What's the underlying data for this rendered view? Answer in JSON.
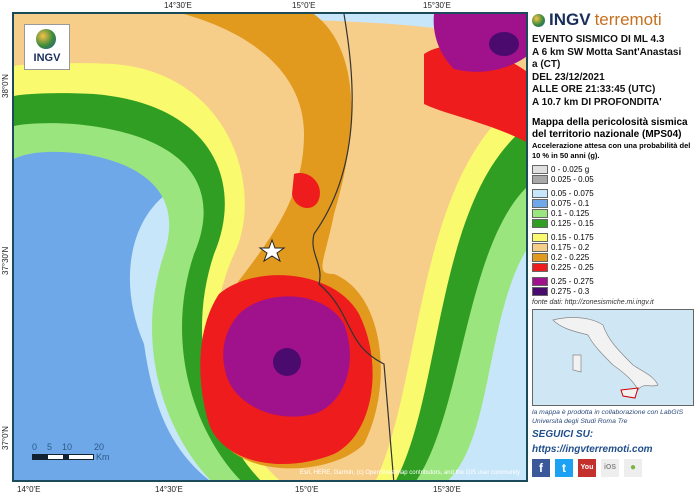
{
  "map": {
    "logo_text": "INGV",
    "ticks_top": [
      "14°30'E",
      "15°0'E",
      "15°30'E"
    ],
    "ticks_left": [
      "38°0'N",
      "37°30'N",
      "37°0'N"
    ],
    "ticks_bottom": [
      "14°0'E",
      "14°30'E",
      "15°0'E",
      "15°30'E"
    ],
    "scale_labels": [
      "0",
      "5",
      "10",
      "20"
    ],
    "scale_unit": "Km",
    "attribution": "Esri, HERE, Garmin, (c) OpenStreetMap contributors, and the GIS user community",
    "epicenter_icon": "star-icon"
  },
  "panel": {
    "brand_a": "INGV",
    "brand_b": "terremoti",
    "event_lines": [
      "EVENTO SISMICO DI ML 4.3",
      "A 6 km SW Motta Sant'Anastasi",
      "a (CT)",
      "DEL 23/12/2021",
      "ALLE ORE 21:33:45 (UTC)",
      "A 10.7 km DI PROFONDITA'"
    ],
    "map_title": "Mappa della pericolosità sismica del territorio nazionale (MPS04)",
    "map_subtitle": "Accelerazione attesa con una probabilità del 10 % in 50 anni (g).",
    "legend": [
      {
        "label": "0 - 0.025 g",
        "color": "#e0e0e0"
      },
      {
        "label": "0.025 - 0.05",
        "color": "#a8a8a8"
      },
      {
        "label": "0.05 - 0.075",
        "color": "#c8e6fa"
      },
      {
        "label": "0.075 - 0.1",
        "color": "#6fa8e8"
      },
      {
        "label": "0.1 - 0.125",
        "color": "#9be57f"
      },
      {
        "label": "0.125 - 0.15",
        "color": "#2f9e22"
      },
      {
        "label": "0.15 - 0.175",
        "color": "#fafa6e"
      },
      {
        "label": "0.175 - 0.2",
        "color": "#f7cd8a"
      },
      {
        "label": "0.2 - 0.225",
        "color": "#e29a1e"
      },
      {
        "label": "0.225 - 0.25",
        "color": "#ee1c1c"
      },
      {
        "label": "0.25 - 0.275",
        "color": "#a0128c"
      },
      {
        "label": "0.275 - 0.3",
        "color": "#4a0a6e"
      }
    ],
    "source": "fonte dati: http://zonesismiche.mi.ingv.it",
    "collab": "la mappa è prodotta in collaborazione con LabGIS Università degli Studi Roma Tre",
    "follow": "SEGUICI SU:",
    "url": "https://ingvterremoti.com",
    "social": [
      "facebook-icon",
      "twitter-icon",
      "youtube-icon",
      "ios-icon",
      "android-icon"
    ]
  }
}
